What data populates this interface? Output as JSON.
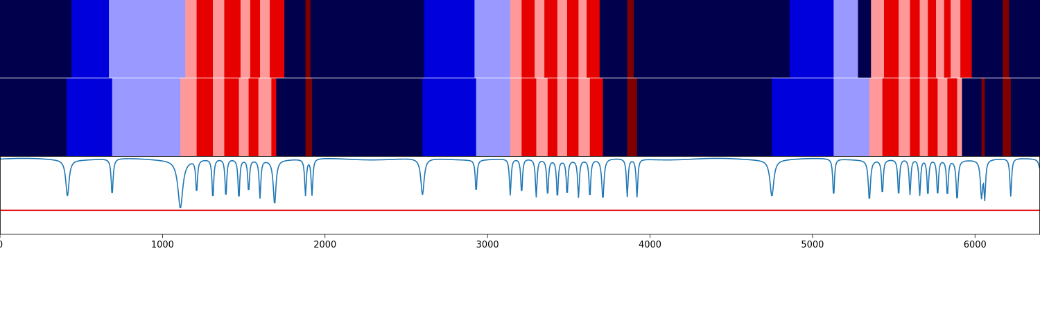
{
  "chart_data": {
    "type": "heatmap",
    "title": "",
    "xlabel": "",
    "ylabel": "",
    "xlim": [
      0,
      6400
    ],
    "xticks": [
      0,
      1000,
      2000,
      3000,
      4000,
      5000,
      6000
    ],
    "xtick_labels": [
      "0",
      "1000",
      "2000",
      "3000",
      "4000",
      "5000",
      "6000"
    ],
    "color_classes": {
      "0": "#00004c",
      "1": "#0000dd",
      "2": "#9999ff",
      "3": "#ff9999",
      "4": "#e60000",
      "5": "#800000"
    },
    "segment_tracks": [
      {
        "segments": [
          [
            0,
            440,
            0
          ],
          [
            440,
            670,
            1
          ],
          [
            670,
            1140,
            2
          ],
          [
            1140,
            1210,
            3
          ],
          [
            1210,
            1310,
            4
          ],
          [
            1310,
            1380,
            3
          ],
          [
            1380,
            1480,
            4
          ],
          [
            1480,
            1540,
            3
          ],
          [
            1540,
            1600,
            4
          ],
          [
            1600,
            1660,
            3
          ],
          [
            1660,
            1750,
            4
          ],
          [
            1750,
            1880,
            0
          ],
          [
            1880,
            1910,
            5
          ],
          [
            1910,
            2610,
            0
          ],
          [
            2610,
            2920,
            1
          ],
          [
            2920,
            3140,
            2
          ],
          [
            3140,
            3210,
            3
          ],
          [
            3210,
            3290,
            4
          ],
          [
            3290,
            3350,
            3
          ],
          [
            3350,
            3430,
            4
          ],
          [
            3430,
            3490,
            3
          ],
          [
            3490,
            3560,
            4
          ],
          [
            3560,
            3610,
            3
          ],
          [
            3610,
            3690,
            4
          ],
          [
            3690,
            3860,
            0
          ],
          [
            3860,
            3900,
            5
          ],
          [
            3900,
            4860,
            0
          ],
          [
            4860,
            5130,
            1
          ],
          [
            5130,
            5280,
            2
          ],
          [
            5280,
            5360,
            0
          ],
          [
            5360,
            5440,
            3
          ],
          [
            5440,
            5530,
            4
          ],
          [
            5530,
            5600,
            3
          ],
          [
            5600,
            5660,
            4
          ],
          [
            5660,
            5710,
            3
          ],
          [
            5710,
            5760,
            4
          ],
          [
            5760,
            5810,
            3
          ],
          [
            5810,
            5850,
            4
          ],
          [
            5850,
            5910,
            3
          ],
          [
            5910,
            5980,
            4
          ],
          [
            5980,
            6170,
            0
          ],
          [
            6170,
            6210,
            5
          ],
          [
            6210,
            6400,
            0
          ]
        ]
      },
      {
        "segments": [
          [
            0,
            410,
            0
          ],
          [
            410,
            690,
            1
          ],
          [
            690,
            1110,
            2
          ],
          [
            1110,
            1210,
            3
          ],
          [
            1210,
            1310,
            4
          ],
          [
            1310,
            1380,
            3
          ],
          [
            1380,
            1470,
            4
          ],
          [
            1470,
            1530,
            3
          ],
          [
            1530,
            1590,
            4
          ],
          [
            1590,
            1670,
            3
          ],
          [
            1670,
            1700,
            4
          ],
          [
            1700,
            1880,
            0
          ],
          [
            1880,
            1920,
            5
          ],
          [
            1920,
            2600,
            0
          ],
          [
            2600,
            2930,
            1
          ],
          [
            2930,
            3140,
            2
          ],
          [
            3140,
            3210,
            3
          ],
          [
            3210,
            3300,
            4
          ],
          [
            3300,
            3370,
            3
          ],
          [
            3370,
            3430,
            4
          ],
          [
            3430,
            3490,
            3
          ],
          [
            3490,
            3560,
            4
          ],
          [
            3560,
            3630,
            3
          ],
          [
            3630,
            3710,
            4
          ],
          [
            3710,
            3860,
            0
          ],
          [
            3860,
            3920,
            5
          ],
          [
            3920,
            4750,
            0
          ],
          [
            4750,
            5130,
            1
          ],
          [
            5130,
            5350,
            2
          ],
          [
            5350,
            5430,
            3
          ],
          [
            5430,
            5530,
            4
          ],
          [
            5530,
            5600,
            3
          ],
          [
            5600,
            5660,
            4
          ],
          [
            5660,
            5710,
            3
          ],
          [
            5710,
            5770,
            4
          ],
          [
            5770,
            5830,
            3
          ],
          [
            5830,
            5890,
            4
          ],
          [
            5890,
            5920,
            3
          ],
          [
            5920,
            6040,
            0
          ],
          [
            6040,
            6060,
            5
          ],
          [
            6060,
            6170,
            0
          ],
          [
            6170,
            6220,
            5
          ],
          [
            6220,
            6400,
            0
          ]
        ]
      }
    ],
    "line_panel": {
      "ylim": [
        0,
        1
      ],
      "line_color": "#1f77b4",
      "threshold": 0.31,
      "threshold_color": "#e00000",
      "baseline": 0.97,
      "dips": [
        [
          415,
          0.5,
          12
        ],
        [
          690,
          0.5,
          7
        ],
        [
          1110,
          0.35,
          18
        ],
        [
          1210,
          0.55,
          6
        ],
        [
          1310,
          0.45,
          6
        ],
        [
          1390,
          0.47,
          6
        ],
        [
          1470,
          0.45,
          6
        ],
        [
          1530,
          0.55,
          6
        ],
        [
          1600,
          0.48,
          6
        ],
        [
          1690,
          0.4,
          10
        ],
        [
          1880,
          0.5,
          6
        ],
        [
          1920,
          0.5,
          6
        ],
        [
          2600,
          0.5,
          12
        ],
        [
          2930,
          0.55,
          6
        ],
        [
          3140,
          0.5,
          6
        ],
        [
          3210,
          0.52,
          6
        ],
        [
          3300,
          0.48,
          6
        ],
        [
          3370,
          0.5,
          6
        ],
        [
          3430,
          0.48,
          6
        ],
        [
          3490,
          0.52,
          6
        ],
        [
          3560,
          0.49,
          6
        ],
        [
          3630,
          0.48,
          6
        ],
        [
          3710,
          0.45,
          8
        ],
        [
          3860,
          0.48,
          6
        ],
        [
          3920,
          0.48,
          6
        ],
        [
          4750,
          0.5,
          14
        ],
        [
          5130,
          0.48,
          6
        ],
        [
          5350,
          0.45,
          8
        ],
        [
          5430,
          0.52,
          6
        ],
        [
          5530,
          0.49,
          6
        ],
        [
          5600,
          0.51,
          6
        ],
        [
          5660,
          0.5,
          6
        ],
        [
          5710,
          0.49,
          6
        ],
        [
          5770,
          0.5,
          6
        ],
        [
          5830,
          0.5,
          6
        ],
        [
          5890,
          0.45,
          7
        ],
        [
          6040,
          0.5,
          8
        ],
        [
          6060,
          0.5,
          6
        ],
        [
          6220,
          0.48,
          6
        ],
        [
          6400,
          0.85,
          10
        ]
      ]
    }
  }
}
